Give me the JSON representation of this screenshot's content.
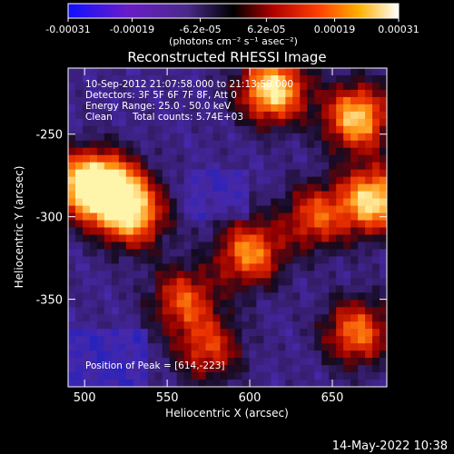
{
  "chart_data": {
    "type": "heatmap",
    "title": "Reconstructed RHESSI Image",
    "xlabel": "Heliocentric X (arcsec)",
    "ylabel": "Heliocentric Y (arcsec)",
    "xlim": [
      490,
      683
    ],
    "ylim": [
      -403,
      -210
    ],
    "x_ticks": [
      500,
      550,
      600,
      650
    ],
    "y_ticks": [
      -250,
      -300,
      -350
    ],
    "colorbar": {
      "colormap": "hot-on-blue",
      "range": [
        -0.00031,
        0.00031
      ],
      "tick_labels": [
        "-0.00031",
        "-0.00019",
        "-6.2e-05",
        "6.2e-05",
        "0.00019",
        "0.00031"
      ],
      "tick_values": [
        -0.00031,
        -0.00019,
        -6.2e-05,
        6.2e-05,
        0.00019,
        0.00031
      ],
      "units_label": "(photons cm⁻² s⁻¹ asec⁻²)"
    },
    "annotations": {
      "time_range": "10-Sep-2012 21:07:58.000 to 21:13:58.000",
      "detectors": "Detectors: 3F 5F 6F 7F 8F, Att 0",
      "energy_range": "Energy Range: 25.0 - 50.0 keV",
      "algorithm": "Clean",
      "total_counts": "Total counts: 5.74E+03",
      "peak": "Position of Peak = [614,-223]"
    },
    "peak_position": [
      614,
      -223
    ],
    "bright_regions": [
      {
        "x": 500,
        "y": -280,
        "level": 0.85
      },
      {
        "x": 517,
        "y": -285,
        "level": 0.9
      },
      {
        "x": 530,
        "y": -300,
        "level": 0.7
      },
      {
        "x": 560,
        "y": -350,
        "level": 0.6
      },
      {
        "x": 575,
        "y": -380,
        "level": 0.55
      },
      {
        "x": 600,
        "y": -322,
        "level": 0.75
      },
      {
        "x": 614,
        "y": -223,
        "level": 1.0
      },
      {
        "x": 640,
        "y": -300,
        "level": 0.6
      },
      {
        "x": 665,
        "y": -240,
        "level": 0.9
      },
      {
        "x": 675,
        "y": -290,
        "level": 0.95
      },
      {
        "x": 665,
        "y": -370,
        "level": 0.7
      }
    ],
    "grid": false
  },
  "footer": {
    "timestamp": "14-May-2022 10:38"
  }
}
